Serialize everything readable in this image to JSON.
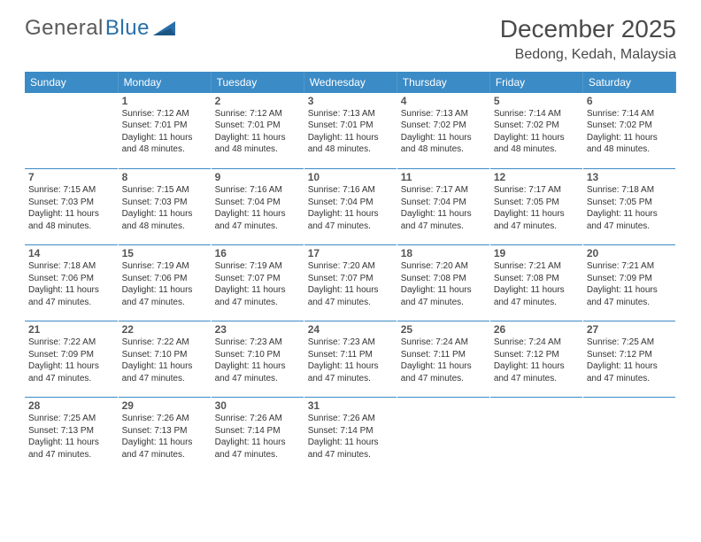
{
  "logo": {
    "word1": "General",
    "word2": "Blue",
    "triangle_color": "#2a6fa8"
  },
  "title": "December 2025",
  "location": "Bedong, Kedah, Malaysia",
  "colors": {
    "header_bg": "#3b8bc6",
    "header_text": "#ffffff",
    "row_separator": "#3b8bc6",
    "page_bg": "#ffffff",
    "text": "#2b2b2b"
  },
  "weekday_labels": [
    "Sunday",
    "Monday",
    "Tuesday",
    "Wednesday",
    "Thursday",
    "Friday",
    "Saturday"
  ],
  "grid": [
    [
      null,
      {
        "n": 1,
        "sunrise": "7:12 AM",
        "sunset": "7:01 PM",
        "daylight": "11 hours and 48 minutes."
      },
      {
        "n": 2,
        "sunrise": "7:12 AM",
        "sunset": "7:01 PM",
        "daylight": "11 hours and 48 minutes."
      },
      {
        "n": 3,
        "sunrise": "7:13 AM",
        "sunset": "7:01 PM",
        "daylight": "11 hours and 48 minutes."
      },
      {
        "n": 4,
        "sunrise": "7:13 AM",
        "sunset": "7:02 PM",
        "daylight": "11 hours and 48 minutes."
      },
      {
        "n": 5,
        "sunrise": "7:14 AM",
        "sunset": "7:02 PM",
        "daylight": "11 hours and 48 minutes."
      },
      {
        "n": 6,
        "sunrise": "7:14 AM",
        "sunset": "7:02 PM",
        "daylight": "11 hours and 48 minutes."
      }
    ],
    [
      {
        "n": 7,
        "sunrise": "7:15 AM",
        "sunset": "7:03 PM",
        "daylight": "11 hours and 48 minutes."
      },
      {
        "n": 8,
        "sunrise": "7:15 AM",
        "sunset": "7:03 PM",
        "daylight": "11 hours and 48 minutes."
      },
      {
        "n": 9,
        "sunrise": "7:16 AM",
        "sunset": "7:04 PM",
        "daylight": "11 hours and 47 minutes."
      },
      {
        "n": 10,
        "sunrise": "7:16 AM",
        "sunset": "7:04 PM",
        "daylight": "11 hours and 47 minutes."
      },
      {
        "n": 11,
        "sunrise": "7:17 AM",
        "sunset": "7:04 PM",
        "daylight": "11 hours and 47 minutes."
      },
      {
        "n": 12,
        "sunrise": "7:17 AM",
        "sunset": "7:05 PM",
        "daylight": "11 hours and 47 minutes."
      },
      {
        "n": 13,
        "sunrise": "7:18 AM",
        "sunset": "7:05 PM",
        "daylight": "11 hours and 47 minutes."
      }
    ],
    [
      {
        "n": 14,
        "sunrise": "7:18 AM",
        "sunset": "7:06 PM",
        "daylight": "11 hours and 47 minutes."
      },
      {
        "n": 15,
        "sunrise": "7:19 AM",
        "sunset": "7:06 PM",
        "daylight": "11 hours and 47 minutes."
      },
      {
        "n": 16,
        "sunrise": "7:19 AM",
        "sunset": "7:07 PM",
        "daylight": "11 hours and 47 minutes."
      },
      {
        "n": 17,
        "sunrise": "7:20 AM",
        "sunset": "7:07 PM",
        "daylight": "11 hours and 47 minutes."
      },
      {
        "n": 18,
        "sunrise": "7:20 AM",
        "sunset": "7:08 PM",
        "daylight": "11 hours and 47 minutes."
      },
      {
        "n": 19,
        "sunrise": "7:21 AM",
        "sunset": "7:08 PM",
        "daylight": "11 hours and 47 minutes."
      },
      {
        "n": 20,
        "sunrise": "7:21 AM",
        "sunset": "7:09 PM",
        "daylight": "11 hours and 47 minutes."
      }
    ],
    [
      {
        "n": 21,
        "sunrise": "7:22 AM",
        "sunset": "7:09 PM",
        "daylight": "11 hours and 47 minutes."
      },
      {
        "n": 22,
        "sunrise": "7:22 AM",
        "sunset": "7:10 PM",
        "daylight": "11 hours and 47 minutes."
      },
      {
        "n": 23,
        "sunrise": "7:23 AM",
        "sunset": "7:10 PM",
        "daylight": "11 hours and 47 minutes."
      },
      {
        "n": 24,
        "sunrise": "7:23 AM",
        "sunset": "7:11 PM",
        "daylight": "11 hours and 47 minutes."
      },
      {
        "n": 25,
        "sunrise": "7:24 AM",
        "sunset": "7:11 PM",
        "daylight": "11 hours and 47 minutes."
      },
      {
        "n": 26,
        "sunrise": "7:24 AM",
        "sunset": "7:12 PM",
        "daylight": "11 hours and 47 minutes."
      },
      {
        "n": 27,
        "sunrise": "7:25 AM",
        "sunset": "7:12 PM",
        "daylight": "11 hours and 47 minutes."
      }
    ],
    [
      {
        "n": 28,
        "sunrise": "7:25 AM",
        "sunset": "7:13 PM",
        "daylight": "11 hours and 47 minutes."
      },
      {
        "n": 29,
        "sunrise": "7:26 AM",
        "sunset": "7:13 PM",
        "daylight": "11 hours and 47 minutes."
      },
      {
        "n": 30,
        "sunrise": "7:26 AM",
        "sunset": "7:14 PM",
        "daylight": "11 hours and 47 minutes."
      },
      {
        "n": 31,
        "sunrise": "7:26 AM",
        "sunset": "7:14 PM",
        "daylight": "11 hours and 47 minutes."
      },
      null,
      null,
      null
    ]
  ],
  "labels": {
    "sunrise": "Sunrise:",
    "sunset": "Sunset:",
    "daylight": "Daylight:"
  }
}
